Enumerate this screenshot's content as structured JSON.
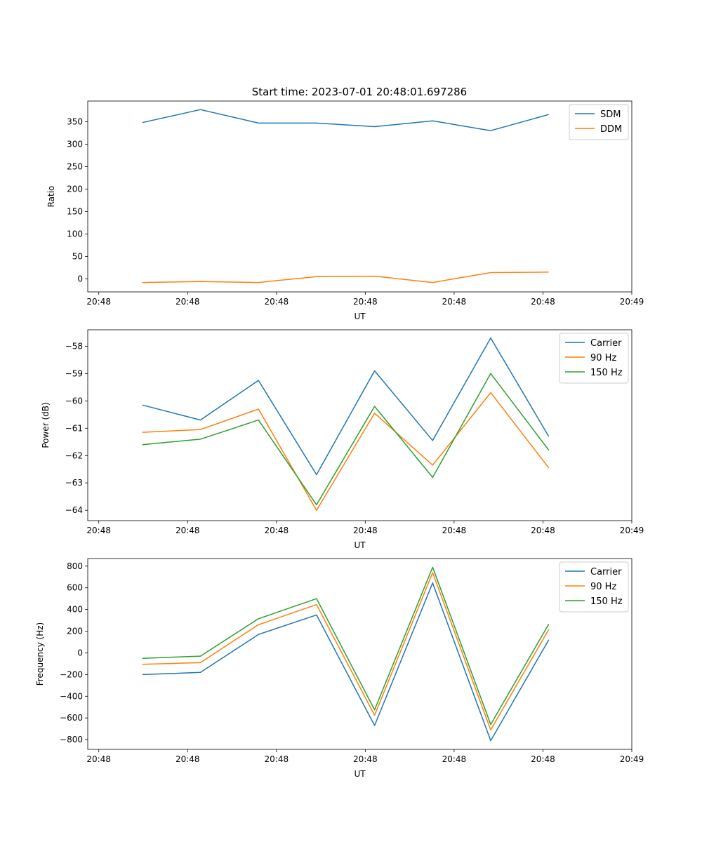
{
  "title": "Start time: 2023-07-01 20:48:01.697286",
  "colors": {
    "blue": "#1f77b4",
    "orange": "#ff7f0e",
    "green": "#2ca02c"
  },
  "chart_data": [
    {
      "type": "line",
      "xlabel": "UT",
      "ylabel": "Ratio",
      "x": [
        0,
        1,
        2,
        3,
        4,
        5,
        6,
        7
      ],
      "xlim": [
        -0.94,
        8.43
      ],
      "xticks": [
        -0.75,
        0.78,
        2.31,
        3.84,
        5.37,
        6.9,
        8.43
      ],
      "xtick_labels": [
        "20:48",
        "20:48",
        "20:48",
        "20:48",
        "20:48",
        "20:48",
        "20:49"
      ],
      "ylim": [
        -29,
        396
      ],
      "yticks": [
        0,
        50,
        100,
        150,
        200,
        250,
        300,
        350
      ],
      "legend": "top-right",
      "series": [
        {
          "name": "SDM",
          "color": "#1f77b4",
          "values": [
            348,
            377,
            347,
            347,
            339,
            352,
            330,
            366
          ]
        },
        {
          "name": "DDM",
          "color": "#ff7f0e",
          "values": [
            -8,
            -6,
            -8,
            5,
            6,
            -8,
            14,
            15
          ]
        }
      ]
    },
    {
      "type": "line",
      "xlabel": "UT",
      "ylabel": "Power (dB)",
      "x": [
        0,
        1,
        2,
        3,
        4,
        5,
        6,
        7
      ],
      "xlim": [
        -0.94,
        8.43
      ],
      "xticks": [
        -0.75,
        0.78,
        2.31,
        3.84,
        5.37,
        6.9,
        8.43
      ],
      "xtick_labels": [
        "20:48",
        "20:48",
        "20:48",
        "20:48",
        "20:48",
        "20:48",
        "20:49"
      ],
      "ylim": [
        -64.38,
        -57.4
      ],
      "yticks": [
        -64,
        -63,
        -62,
        -61,
        -60,
        -59,
        -58
      ],
      "legend": "top-right",
      "series": [
        {
          "name": "Carrier",
          "color": "#1f77b4",
          "values": [
            -60.15,
            -60.7,
            -59.25,
            -62.7,
            -58.9,
            -61.45,
            -57.7,
            -61.3
          ]
        },
        {
          "name": "90 Hz",
          "color": "#ff7f0e",
          "values": [
            -61.15,
            -61.05,
            -60.3,
            -64.0,
            -60.45,
            -62.35,
            -59.7,
            -62.45
          ]
        },
        {
          "name": "150 Hz",
          "color": "#2ca02c",
          "values": [
            -61.6,
            -61.4,
            -60.7,
            -63.8,
            -60.2,
            -62.8,
            -59.0,
            -61.8
          ]
        }
      ]
    },
    {
      "type": "line",
      "xlabel": "UT",
      "ylabel": "Frequency (Hz)",
      "x": [
        0,
        1,
        2,
        3,
        4,
        5,
        6,
        7
      ],
      "xlim": [
        -0.94,
        8.43
      ],
      "xticks": [
        -0.75,
        0.78,
        2.31,
        3.84,
        5.37,
        6.9,
        8.43
      ],
      "xtick_labels": [
        "20:48",
        "20:48",
        "20:48",
        "20:48",
        "20:48",
        "20:48",
        "20:49"
      ],
      "ylim": [
        -890,
        870
      ],
      "yticks": [
        -800,
        -600,
        -400,
        -200,
        0,
        200,
        400,
        600,
        800
      ],
      "legend": "top-right",
      "series": [
        {
          "name": "Carrier",
          "color": "#1f77b4",
          "values": [
            -200,
            -180,
            170,
            350,
            -670,
            645,
            -810,
            120
          ]
        },
        {
          "name": "90 Hz",
          "color": "#ff7f0e",
          "values": [
            -105,
            -90,
            260,
            445,
            -575,
            740,
            -710,
            215
          ]
        },
        {
          "name": "150 Hz",
          "color": "#2ca02c",
          "values": [
            -50,
            -30,
            315,
            500,
            -525,
            790,
            -660,
            265
          ]
        }
      ]
    }
  ]
}
